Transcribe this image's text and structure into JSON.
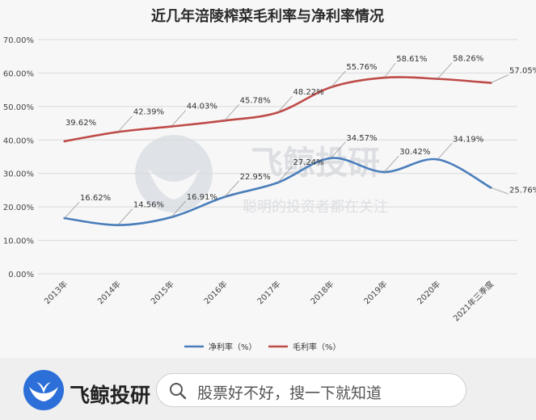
{
  "chart_data": {
    "type": "line",
    "title": "近几年涪陵榨菜毛利率与净利率情况",
    "categories": [
      "2013年",
      "2014年",
      "2015年",
      "2016年",
      "2017年",
      "2018年",
      "2019年",
      "2020年",
      "2021年三季度"
    ],
    "series": [
      {
        "name": "净利率（%）",
        "color": "#4a7ebb",
        "values": [
          16.62,
          14.56,
          16.91,
          22.95,
          27.24,
          34.57,
          30.42,
          34.19,
          25.76
        ],
        "labels": [
          "16.62%",
          "14.56%",
          "16.91%",
          "22.95%",
          "27.24%",
          "34.57%",
          "30.42%",
          "34.19%",
          "25.76%"
        ]
      },
      {
        "name": "毛利率（%）",
        "color": "#be4b48",
        "values": [
          39.62,
          42.39,
          44.03,
          45.78,
          48.22,
          55.76,
          58.61,
          58.26,
          57.05
        ],
        "labels": [
          "39.62%",
          "42.39%",
          "44.03%",
          "45.78%",
          "48.22%",
          "55.76%",
          "58.61%",
          "58.26%",
          "57.05%"
        ]
      }
    ],
    "ylim": [
      0,
      70
    ],
    "yticks": [
      0,
      10,
      20,
      30,
      40,
      50,
      60,
      70
    ],
    "ytick_labels": [
      "0.00%",
      "10.00%",
      "20.00%",
      "30.00%",
      "40.00%",
      "50.00%",
      "60.00%",
      "70.00%"
    ],
    "grid": true,
    "legend_position": "bottom"
  },
  "watermark": {
    "name": "飞鲸投研",
    "slogan": "聪明的投资者都在关注"
  },
  "footer": {
    "brand_name": "飞鲸投研",
    "search_placeholder": "股票好不好，搜一下就知道"
  },
  "icons": {
    "brand": "whale-logo-icon",
    "search": "search-icon"
  }
}
